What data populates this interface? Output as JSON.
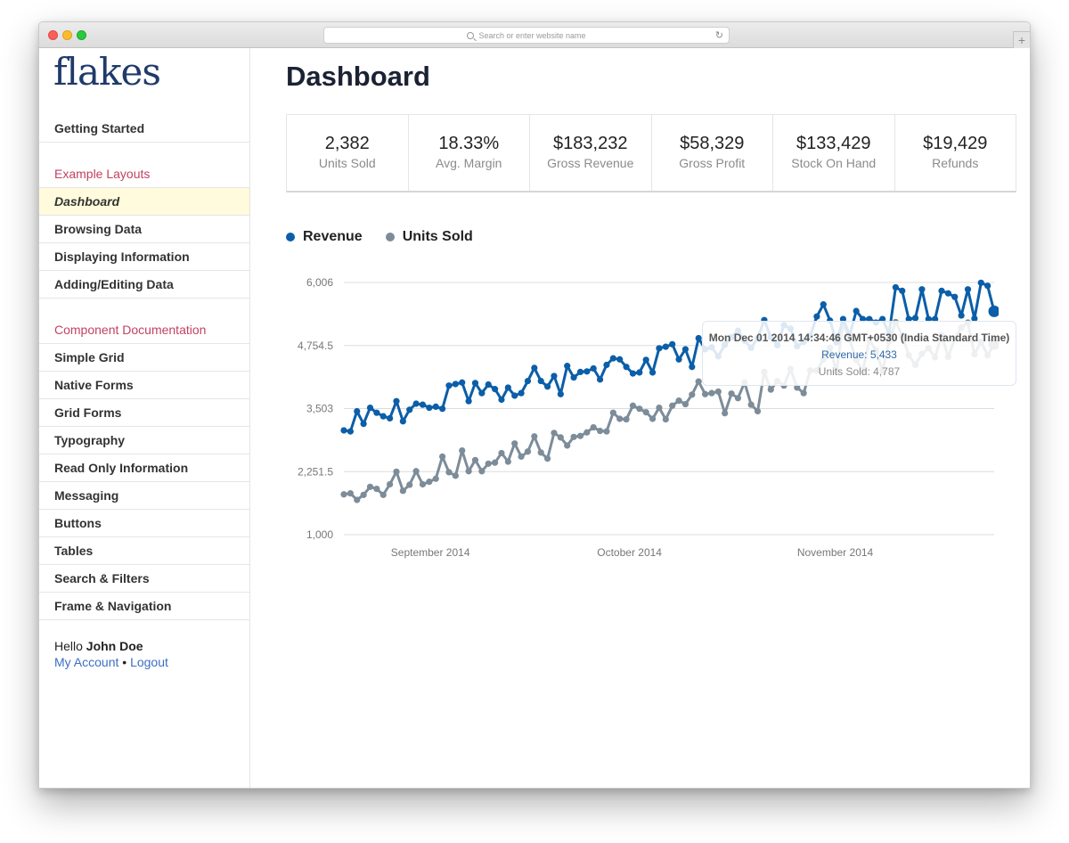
{
  "browser": {
    "url_placeholder": "Search or enter website name",
    "reload_glyph": "↻",
    "newtab_glyph": "+"
  },
  "sidebar": {
    "logo": "flakes",
    "getting_started": "Getting Started",
    "sections": [
      {
        "heading": "Example Layouts",
        "items": [
          {
            "label": "Dashboard",
            "active": true
          },
          {
            "label": "Browsing Data"
          },
          {
            "label": "Displaying Information"
          },
          {
            "label": "Adding/Editing Data"
          }
        ]
      },
      {
        "heading": "Component Documentation",
        "items": [
          {
            "label": "Simple Grid"
          },
          {
            "label": "Native Forms"
          },
          {
            "label": "Grid Forms"
          },
          {
            "label": "Typography"
          },
          {
            "label": "Read Only Information"
          },
          {
            "label": "Messaging"
          },
          {
            "label": "Buttons"
          },
          {
            "label": "Tables"
          },
          {
            "label": "Search & Filters"
          },
          {
            "label": "Frame & Navigation"
          }
        ]
      }
    ],
    "user": {
      "greeting": "Hello",
      "name": "John Doe",
      "account_link": "My Account",
      "separator": "•",
      "logout_link": "Logout"
    }
  },
  "main": {
    "title": "Dashboard",
    "stats": [
      {
        "value": "2,382",
        "label": "Units Sold"
      },
      {
        "value": "18.33%",
        "label": "Avg. Margin"
      },
      {
        "value": "$183,232",
        "label": "Gross Revenue"
      },
      {
        "value": "$58,329",
        "label": "Gross Profit"
      },
      {
        "value": "$133,429",
        "label": "Stock On Hand"
      },
      {
        "value": "$19,429",
        "label": "Refunds"
      }
    ],
    "tooltip": {
      "date": "Mon Dec 01 2014 14:34:46 GMT+0530 (India Standard Time)",
      "revenue": "Revenue: 5,433",
      "units": "Units Sold: 4,787"
    }
  },
  "chart_data": {
    "type": "line",
    "ylim": [
      1000,
      6006
    ],
    "y_ticks": [
      "6,006",
      "4,754.5",
      "3,503",
      "2,251.5",
      "1,000"
    ],
    "x_ticks": [
      "September 2014",
      "October 2014",
      "November 2014"
    ],
    "x_tick_dates": [
      "2014-09-01",
      "2014-10-01",
      "2014-11-01"
    ],
    "x_range": [
      "2014-08-25",
      "2014-12-01"
    ],
    "grid": true,
    "legend": "top-left",
    "series": [
      {
        "name": "Revenue",
        "color": "#0b5ea8",
        "values": [
          3070,
          3050,
          3450,
          3200,
          3520,
          3420,
          3350,
          3310,
          3650,
          3250,
          3480,
          3600,
          3580,
          3520,
          3540,
          3500,
          3960,
          3990,
          4020,
          3650,
          4010,
          3810,
          3980,
          3890,
          3680,
          3920,
          3760,
          3810,
          4050,
          4310,
          4050,
          3940,
          4150,
          3790,
          4350,
          4120,
          4230,
          4240,
          4300,
          4080,
          4370,
          4500,
          4480,
          4330,
          4200,
          4220,
          4470,
          4220,
          4700,
          4730,
          4780,
          4480,
          4680,
          4330,
          4900,
          4680,
          4720,
          4540,
          4770,
          4920,
          5050,
          4850,
          4710,
          4900,
          5260,
          4920,
          4760,
          5160,
          5090,
          4740,
          4830,
          4950,
          5330,
          5570,
          5250,
          4820,
          5280,
          4960,
          5440,
          5280,
          5280,
          5210,
          5280,
          4990,
          5910,
          5840,
          5280,
          5300,
          5870,
          5280,
          5280,
          5840,
          5790,
          5720,
          5350,
          5870,
          5290,
          6000,
          5940,
          5433
        ]
      },
      {
        "name": "Units Sold",
        "color": "#7d8c99",
        "values": [
          1800,
          1820,
          1690,
          1790,
          1950,
          1910,
          1790,
          2000,
          2250,
          1870,
          1990,
          2260,
          2000,
          2050,
          2110,
          2550,
          2240,
          2170,
          2670,
          2260,
          2480,
          2260,
          2410,
          2430,
          2620,
          2450,
          2810,
          2550,
          2650,
          2950,
          2630,
          2510,
          3020,
          2930,
          2770,
          2940,
          2960,
          3030,
          3130,
          3060,
          3050,
          3420,
          3300,
          3290,
          3560,
          3500,
          3430,
          3300,
          3520,
          3290,
          3560,
          3660,
          3590,
          3780,
          4040,
          3790,
          3810,
          3840,
          3410,
          3800,
          3710,
          4020,
          3580,
          3450,
          4230,
          3880,
          4050,
          3960,
          4290,
          3920,
          3810,
          4260,
          4260,
          4480,
          4710,
          4230,
          5190,
          4870,
          4470,
          4240,
          4870,
          4660,
          4250,
          4840,
          5220,
          4960,
          4560,
          4370,
          4590,
          4700,
          4520,
          4960,
          4530,
          4890,
          5110,
          5210,
          4580,
          4830,
          4560,
          4787
        ]
      }
    ]
  }
}
